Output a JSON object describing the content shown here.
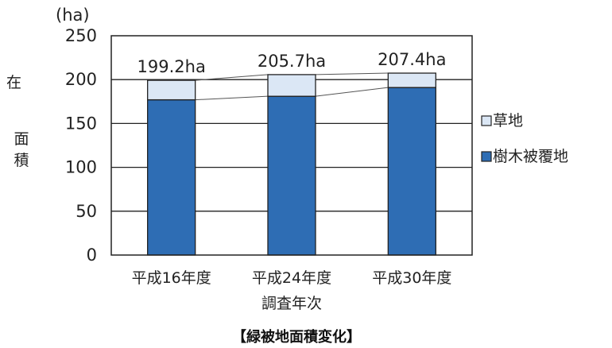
{
  "chart_data": {
    "type": "bar",
    "stacked": true,
    "title": "【緑被地面積変化】",
    "unit": "(ha)",
    "ylabel": "面積",
    "xlabel": "調査年次",
    "ylim": [
      0,
      250
    ],
    "yticks": [
      0,
      50,
      100,
      150,
      200,
      250
    ],
    "categories": [
      "平成16年度",
      "平成24年度",
      "平成30年度"
    ],
    "totals_labels": [
      "199.2ha",
      "205.7ha",
      "207.4ha"
    ],
    "totals": [
      199.2,
      205.7,
      207.4
    ],
    "series": [
      {
        "name": "樹木被覆地",
        "values": [
          177,
          181,
          191
        ],
        "color": "#2e6db4"
      },
      {
        "name": "草地",
        "values": [
          22.2,
          24.7,
          16.4
        ],
        "color": "#dbe7f5"
      }
    ],
    "legend_position": "right",
    "grid": true
  },
  "left_margin_fragment": "在"
}
